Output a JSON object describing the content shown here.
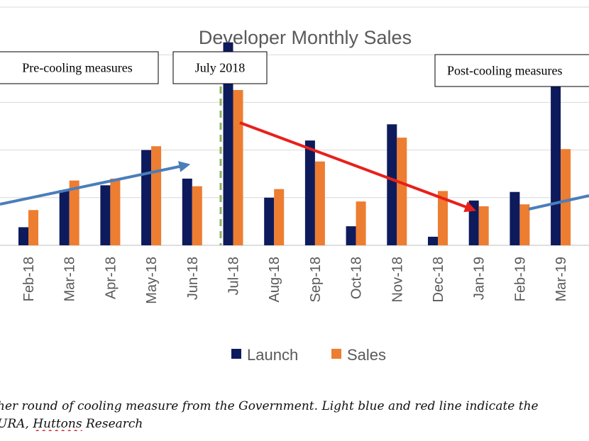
{
  "chart_data": {
    "type": "bar",
    "title": "Developer Monthly Sales",
    "categories": [
      "Feb-18",
      "Mar-18",
      "Apr-18",
      "May-18",
      "Jun-18",
      "Jul-18",
      "Aug-18",
      "Sep-18",
      "Oct-18",
      "Nov-18",
      "Dec-18",
      "Jan-19",
      "Feb-19",
      "Mar-19"
    ],
    "series": [
      {
        "name": "Launch",
        "color": "#0d1b5c",
        "values": [
          19,
          58,
          63,
          100,
          70,
          213,
          50,
          110,
          20,
          127,
          9,
          47,
          56,
          172
        ]
      },
      {
        "name": "Sales",
        "color": "#ed7d31",
        "values": [
          37,
          68,
          70,
          104,
          62,
          163,
          59,
          88,
          46,
          113,
          57,
          41,
          43,
          101
        ]
      }
    ],
    "ylim": [
      0,
      250
    ],
    "grid": true,
    "legend": "bottom",
    "annotations": [
      {
        "text": "Pre-cooling measures"
      },
      {
        "text": "July 2018"
      },
      {
        "text": "Post-cooling measures"
      }
    ]
  },
  "caption": {
    "line1": "her round of cooling measure from the Government. Light blue and red line indicate the",
    "line2_prefix": "URA, ",
    "line2_underlined": "Huttons",
    "line2_suffix": " Research"
  },
  "colors": {
    "trend_up": "#4a7ebb",
    "trend_down": "#e8201a",
    "divider": "#8db45a",
    "gridline": "#d9d9d9"
  }
}
